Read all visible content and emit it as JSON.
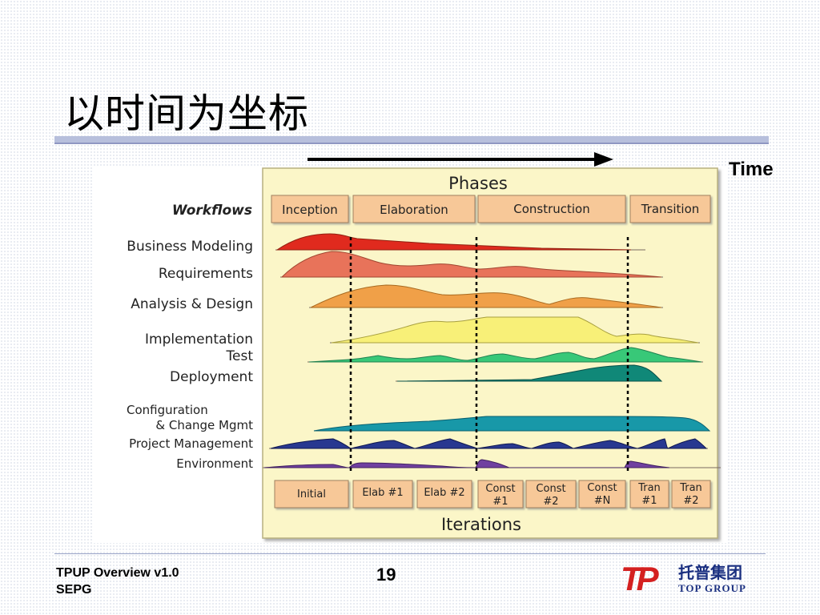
{
  "slide": {
    "title": "以时间为坐标",
    "time_label": "Time"
  },
  "diagram": {
    "phases_header": "Phases",
    "workflows_header": "Workflows",
    "iterations_header": "Iterations",
    "phases": [
      "Inception",
      "Elaboration",
      "Construction",
      "Transition"
    ],
    "workflows": [
      {
        "label": "Business Modeling",
        "color": "#e02a1e"
      },
      {
        "label": "Requirements",
        "color": "#e8735a"
      },
      {
        "label": "Analysis & Design",
        "color": "#f0a048"
      },
      {
        "label": "Implementation",
        "color": "#f8f078"
      },
      {
        "label": "Test",
        "color": "#38c878"
      },
      {
        "label": "Deployment",
        "color": "#108878"
      },
      {
        "label": "Configuration",
        "label2": "& Change Mgmt",
        "color": "#1898a8"
      },
      {
        "label": "Project Management",
        "color": "#283890"
      },
      {
        "label": "Environment",
        "color": "#7040a0"
      }
    ],
    "iterations": [
      {
        "line1": "Initial",
        "line2": ""
      },
      {
        "line1": "Elab #1",
        "line2": ""
      },
      {
        "line1": "Elab #2",
        "line2": ""
      },
      {
        "line1": "Const",
        "line2": "#1"
      },
      {
        "line1": "Const",
        "line2": "#2"
      },
      {
        "line1": "Const",
        "line2": "#N"
      },
      {
        "line1": "Tran",
        "line2": "#1"
      },
      {
        "line1": "Tran",
        "line2": "#2"
      }
    ],
    "panel_color": "#fbf6c8",
    "box_color": "#f7c898"
  },
  "footer": {
    "line1": "TPUP Overview v1.0",
    "line2": "SEPG",
    "page_number": "19"
  },
  "logo": {
    "mark": "TP",
    "chinese": "托普集团",
    "english": "TOP GROUP",
    "color": "#d42020"
  }
}
